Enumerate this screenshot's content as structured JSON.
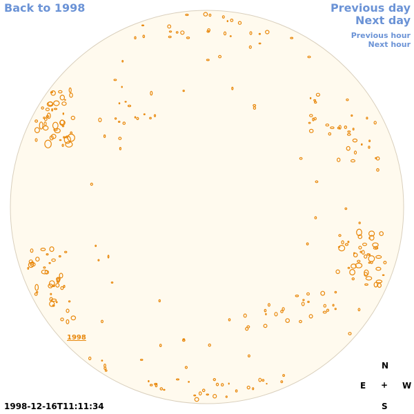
{
  "nav": {
    "back_label": "Back to 1998",
    "prev_day_label": "Previous day",
    "next_day_label": "Next day",
    "prev_hour_label": "Previous hour",
    "next_hour_label": "Next hour"
  },
  "map": {
    "region_label": "1998",
    "disk_color": "#fffaee",
    "disk_border_color": "#d9cfbc",
    "contour_color": "#e8870a"
  },
  "timestamp": "1998-12-16T11:11:34",
  "compass": {
    "n": "N",
    "e": "E",
    "w": "W",
    "s": "S",
    "center": "+"
  }
}
